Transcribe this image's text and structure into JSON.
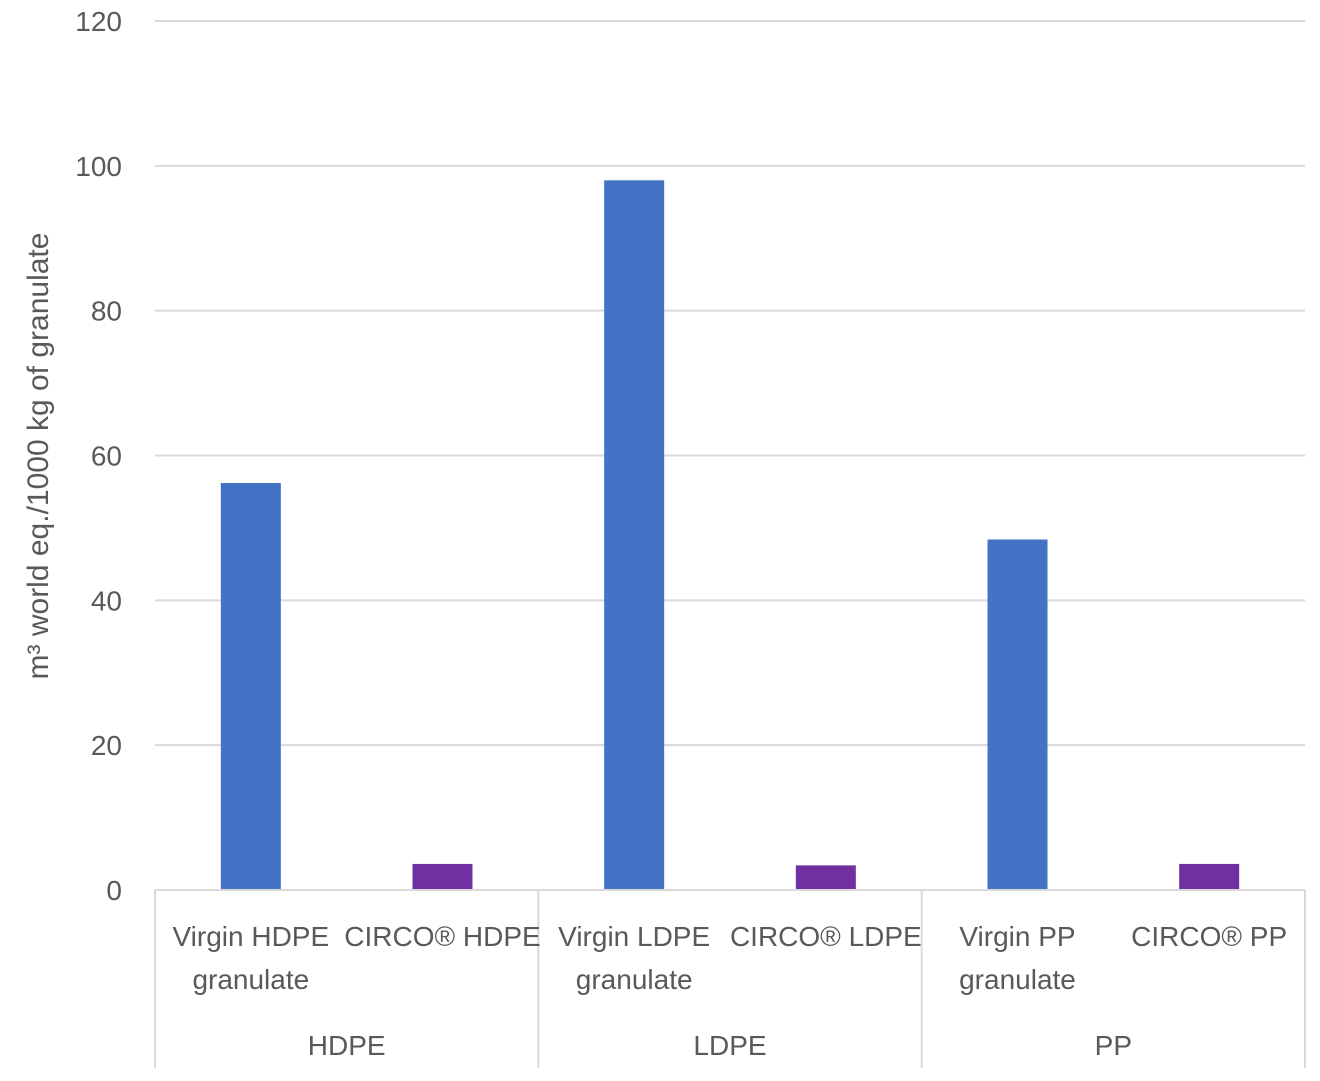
{
  "chart_data": {
    "type": "bar",
    "ylabel": "m³ world eq./1000 kg of granulate",
    "ylim": [
      0,
      120
    ],
    "yticks": [
      0,
      20,
      40,
      60,
      80,
      100,
      120
    ],
    "grid": true,
    "groups": [
      "HDPE",
      "LDPE",
      "PP"
    ],
    "categories": [
      {
        "label_lines": [
          "Virgin HDPE",
          "granulate"
        ],
        "group": "HDPE",
        "value": 56.2,
        "color": "#4472C4"
      },
      {
        "label_lines": [
          "CIRCO® HDPE"
        ],
        "group": "HDPE",
        "value": 3.6,
        "color": "#7030A0"
      },
      {
        "label_lines": [
          "Virgin LDPE",
          "granulate"
        ],
        "group": "LDPE",
        "value": 98.0,
        "color": "#4472C4"
      },
      {
        "label_lines": [
          "CIRCO® LDPE"
        ],
        "group": "LDPE",
        "value": 3.4,
        "color": "#7030A0"
      },
      {
        "label_lines": [
          "Virgin PP",
          "granulate"
        ],
        "group": "PP",
        "value": 48.4,
        "color": "#4472C4"
      },
      {
        "label_lines": [
          "CIRCO® PP"
        ],
        "group": "PP",
        "value": 3.6,
        "color": "#7030A0"
      }
    ]
  }
}
